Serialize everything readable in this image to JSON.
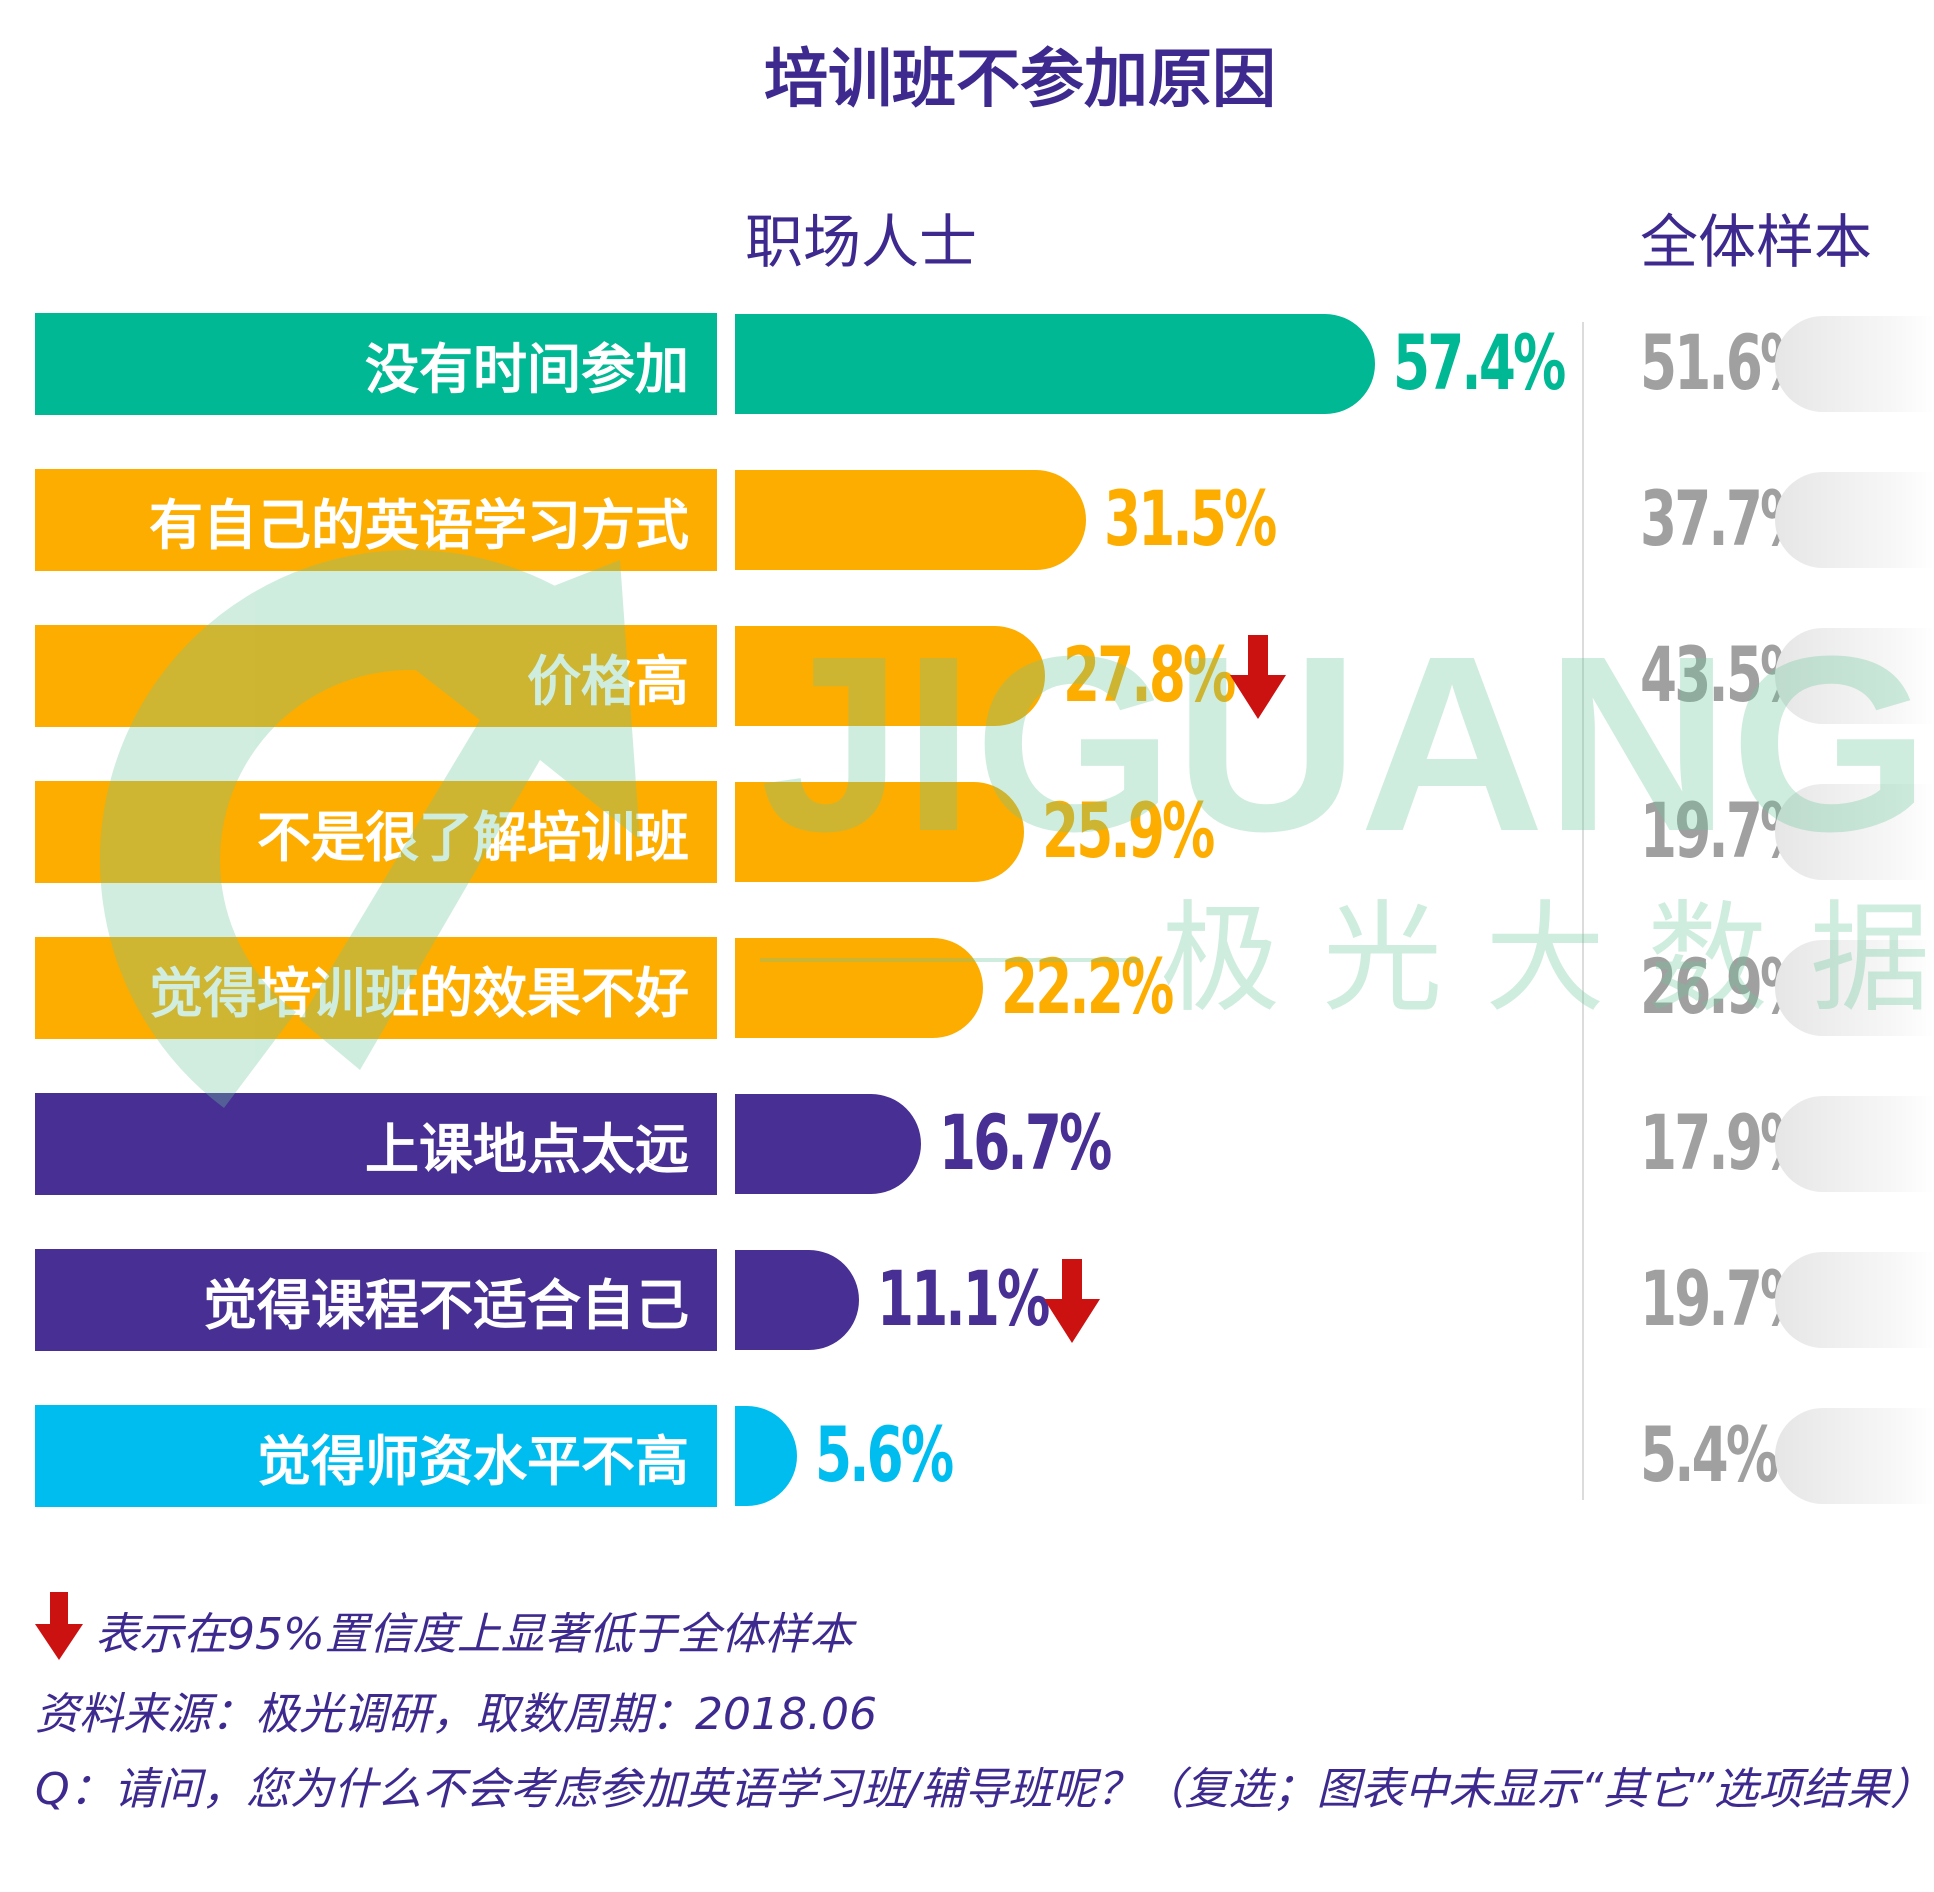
{
  "chart_data": {
    "type": "bar",
    "title": "培训班不参加原因",
    "column_headers": {
      "segment": "职场人士",
      "total": "全体样本"
    },
    "categories": [
      "没有时间参加",
      "有自己的英语学习方式",
      "价格高",
      "不是很了解培训班",
      "觉得培训班的效果不好",
      "上课地点太远",
      "觉得课程不适合自己",
      "觉得师资水平不高"
    ],
    "series": [
      {
        "name": "职场人士",
        "values": [
          57.4,
          31.5,
          27.8,
          25.9,
          22.2,
          16.7,
          11.1,
          5.6
        ]
      },
      {
        "name": "全体样本",
        "values": [
          51.6,
          37.7,
          43.5,
          19.7,
          26.9,
          17.9,
          19.7,
          5.4
        ]
      }
    ],
    "value_labels": {
      "segment": [
        "57.4%",
        "31.5%",
        "27.8%",
        "25.9%",
        "22.2%",
        "16.7%",
        "11.1%",
        "5.6%"
      ],
      "total": [
        "51.6%",
        "37.7%",
        "43.5%",
        "19.7%",
        "26.9%",
        "17.9%",
        "19.7%",
        "5.4%"
      ]
    },
    "significantly_lower": [
      false,
      false,
      true,
      false,
      false,
      false,
      true,
      false
    ],
    "row_colors": [
      "#00b894",
      "#fcad00",
      "#fcad00",
      "#fcad00",
      "#fcad00",
      "#472f94",
      "#472f94",
      "#00bdf0"
    ],
    "arrow_color": "#cc1111",
    "unit": "%"
  },
  "watermark": {
    "latin": "JIGUANG",
    "chinese": "极 光 大 数 据",
    "color": "#6cc89c"
  },
  "footnotes": {
    "legend": "表示在95%置信度上显著低于全体样本",
    "source": "资料来源：极光调研，取数周期：2018.06",
    "question": "Q：请问，您为什么不会考虑参加英语学习班/辅导班呢？（复选；图表中未显示“其它”选项结果）"
  }
}
